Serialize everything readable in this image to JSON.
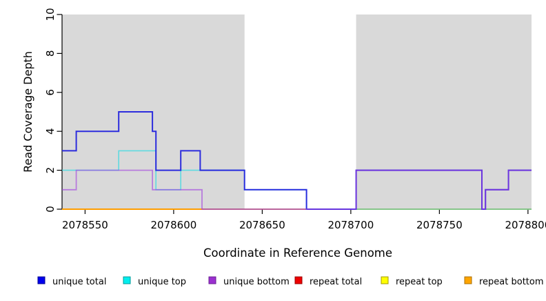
{
  "figure": {
    "background": "#FFFFFF",
    "shade_color": "#D9D9D9"
  },
  "chart_data": {
    "type": "line",
    "subtype": "step-coverage",
    "title": "",
    "xlabel": "Coordinate in Reference Genome",
    "ylabel": "Read Coverage Depth",
    "xlim": [
      2078537,
      2078802
    ],
    "ylim": [
      0,
      10
    ],
    "grid": false,
    "legend_position": "bottom",
    "x_ticks": [
      {
        "value": 2078550,
        "label": "2078550"
      },
      {
        "value": 2078600,
        "label": "2078600"
      },
      {
        "value": 2078650,
        "label": "2078650"
      },
      {
        "value": 2078700,
        "label": "2078700"
      },
      {
        "value": 2078750,
        "label": "2078750"
      },
      {
        "value": 2078800,
        "label": "2078800"
      }
    ],
    "y_ticks": [
      {
        "value": 0,
        "label": "0"
      },
      {
        "value": 2,
        "label": "2"
      },
      {
        "value": 4,
        "label": "4"
      },
      {
        "value": 6,
        "label": "6"
      },
      {
        "value": 8,
        "label": "8"
      },
      {
        "value": 10,
        "label": "10"
      }
    ],
    "shaded_regions": [
      {
        "from": 2078537,
        "to": 2078640
      },
      {
        "from": 2078703,
        "to": 2078802
      }
    ],
    "series": [
      {
        "key": "repeat-top",
        "name": "repeat top",
        "color": "#F0E000",
        "width": 1.3,
        "opacity": 1,
        "points": [
          [
            2078537,
            0
          ],
          [
            2078802,
            0
          ]
        ]
      },
      {
        "key": "repeat-total",
        "name": "repeat total",
        "color": "#E02020",
        "width": 1.3,
        "opacity": 0.62,
        "points": [
          [
            2078537,
            0
          ],
          [
            2078802,
            0
          ]
        ]
      },
      {
        "key": "repeat-bottom",
        "name": "repeat bottom",
        "color": "#FF9D00",
        "width": 2,
        "opacity": 1,
        "points": [
          [
            2078537,
            0
          ],
          [
            2078616,
            0
          ]
        ]
      },
      {
        "key": "unique-top",
        "name": "unique top",
        "color": "#2FD9E2",
        "width": 1.6,
        "opacity": 0.72,
        "points": [
          [
            2078537,
            2
          ],
          [
            2078569,
            3
          ],
          [
            2078590,
            1
          ],
          [
            2078604,
            2
          ],
          [
            2078640,
            1
          ],
          [
            2078675,
            0
          ],
          [
            2078802,
            0
          ]
        ]
      },
      {
        "key": "baseline-accent",
        "name": "baseline accent",
        "color": "#82C982",
        "width": 1.6,
        "opacity": 1,
        "points": [
          [
            2078703,
            0
          ],
          [
            2078802,
            0
          ]
        ]
      },
      {
        "key": "unique-total",
        "name": "unique total",
        "color": "#2323DD",
        "width": 2,
        "opacity": 0.95,
        "points": [
          [
            2078537,
            3
          ],
          [
            2078545,
            4
          ],
          [
            2078569,
            5
          ],
          [
            2078588,
            4
          ],
          [
            2078590,
            2
          ],
          [
            2078604,
            3
          ],
          [
            2078615,
            2
          ],
          [
            2078640,
            1
          ],
          [
            2078675,
            0
          ],
          [
            2078703,
            2
          ],
          [
            2078774,
            0
          ],
          [
            2078776,
            1
          ],
          [
            2078789,
            2
          ],
          [
            2078802,
            2
          ]
        ]
      },
      {
        "key": "unique-bottom",
        "name": "unique bottom",
        "color": "#A03CE0",
        "width": 1.8,
        "opacity": 0.6,
        "points": [
          [
            2078537,
            1
          ],
          [
            2078545,
            2
          ],
          [
            2078588,
            1
          ],
          [
            2078616,
            0
          ],
          [
            2078703,
            2
          ],
          [
            2078774,
            0
          ],
          [
            2078776,
            1
          ],
          [
            2078789,
            2
          ],
          [
            2078802,
            2
          ]
        ]
      }
    ],
    "legend": [
      {
        "label": "unique total",
        "fill": "#0000EE",
        "border": "#000090"
      },
      {
        "label": "unique top",
        "fill": "#00EEEE",
        "border": "#009898"
      },
      {
        "label": "unique bottom",
        "fill": "#9B30D0",
        "border": "#691F92"
      },
      {
        "label": "repeat total",
        "fill": "#EE0000",
        "border": "#980000"
      },
      {
        "label": "repeat top",
        "fill": "#FFFF00",
        "border": "#A09800"
      },
      {
        "label": "repeat bottom",
        "fill": "#FFA500",
        "border": "#A86E00"
      }
    ]
  }
}
